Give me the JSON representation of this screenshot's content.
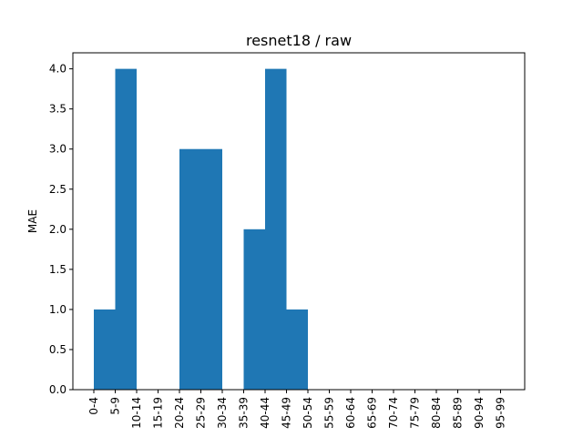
{
  "chart_data": {
    "type": "bar",
    "title": "resnet18 / raw",
    "xlabel": "",
    "ylabel": "MAE",
    "categories": [
      "0-4",
      "5-9",
      "10-14",
      "15-19",
      "20-24",
      "25-29",
      "30-34",
      "35-39",
      "40-44",
      "45-49",
      "50-54",
      "55-59",
      "60-64",
      "65-69",
      "70-74",
      "75-79",
      "80-84",
      "85-89",
      "90-94",
      "95-99"
    ],
    "values": [
      1,
      4,
      0,
      0,
      3,
      3,
      0,
      2,
      4,
      1,
      0,
      0,
      0,
      0,
      0,
      0,
      0,
      0,
      0,
      0
    ],
    "ylim": [
      0,
      4.2
    ],
    "yticks": [
      "0.0",
      "0.5",
      "1.0",
      "1.5",
      "2.0",
      "2.5",
      "3.0",
      "3.5",
      "4.0"
    ],
    "grid": false,
    "bar_color": "#1f77b4"
  }
}
